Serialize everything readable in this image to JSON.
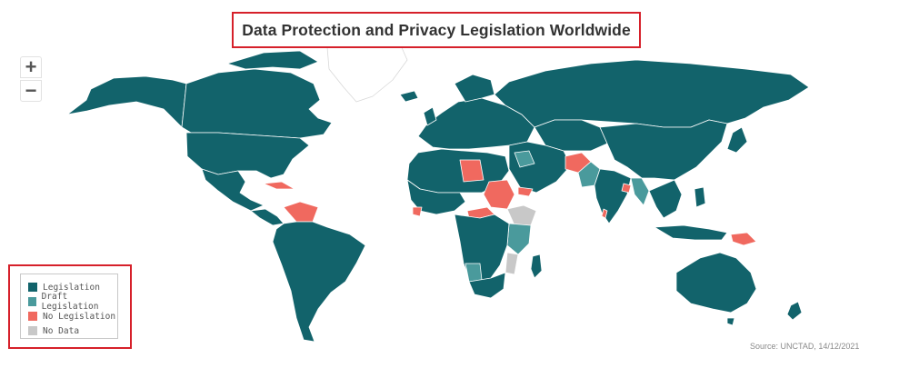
{
  "title": "Data Protection and Privacy Legislation Worldwide",
  "zoom": {
    "in_label": "+",
    "out_label": "−"
  },
  "colors": {
    "legislation": "#12636b",
    "draft": "#4a9a9c",
    "no_legislation": "#f0695f",
    "no_data": "#c8c8c8",
    "border": "#ffffff",
    "highlight_box": "#d6202a"
  },
  "legend": {
    "items": [
      {
        "label": "Legislation",
        "color": "#12636b"
      },
      {
        "label": "Draft Legislation",
        "color": "#4a9a9c"
      },
      {
        "label": "No Legislation",
        "color": "#f0695f"
      },
      {
        "label": "No Data",
        "color": "#c8c8c8"
      }
    ]
  },
  "source": "Source: UNCTAD, 14/12/2021"
}
